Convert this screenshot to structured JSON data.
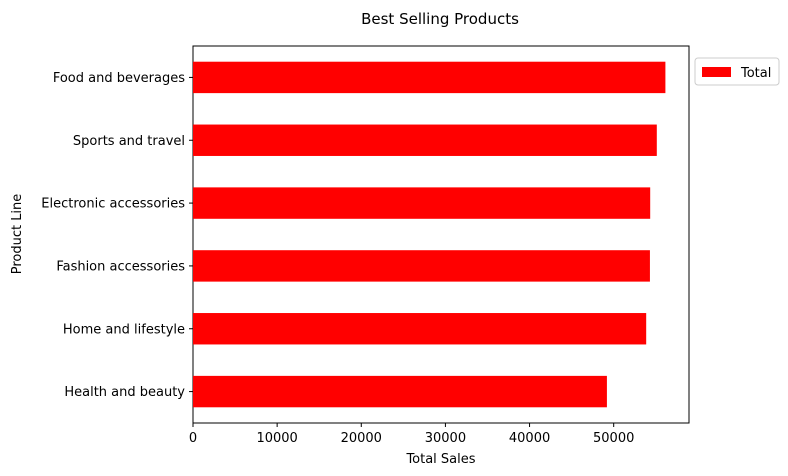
{
  "chart_data": {
    "type": "bar",
    "orientation": "horizontal",
    "title": "Best Selling Products",
    "xlabel": "Total Sales",
    "ylabel": "Product Line",
    "categories": [
      "Health and beauty",
      "Home and lifestyle",
      "Fashion accessories",
      "Electronic accessories",
      "Sports and travel",
      "Food and beverages"
    ],
    "series": [
      {
        "name": "Total",
        "color": "#ff0000",
        "values": [
          49194,
          53862,
          54306,
          54338,
          55123,
          56145
        ]
      }
    ],
    "xlim": [
      0,
      58950
    ],
    "xticks": [
      0,
      10000,
      20000,
      30000,
      40000,
      50000
    ],
    "grid": false,
    "legend": "upper right, outside plot area"
  }
}
